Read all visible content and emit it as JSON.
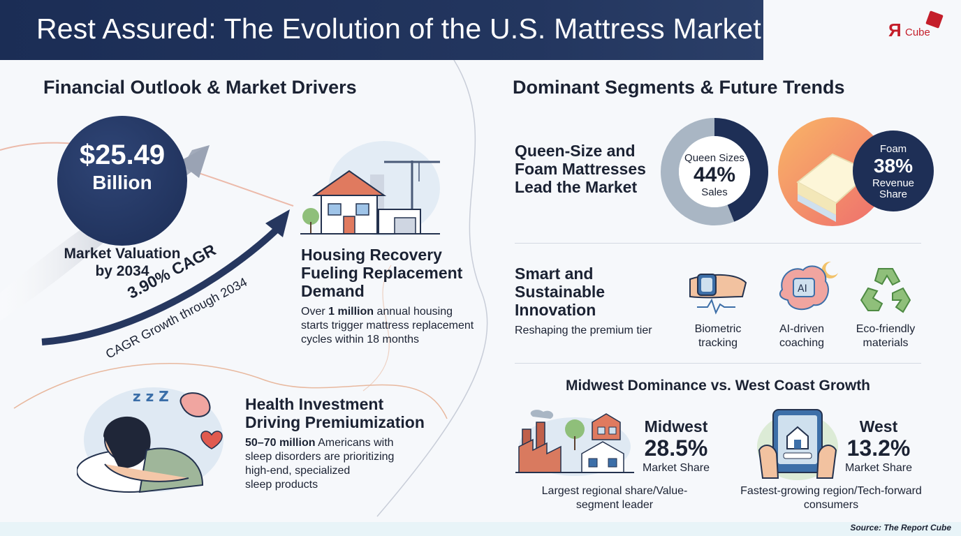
{
  "header": {
    "title": "Rest Assured: The Evolution of the U.S. Mattress Market",
    "logo_letter": "Я",
    "logo_text": "Cube",
    "logo_color": "#c41e2a"
  },
  "left": {
    "section_title": "Financial Outlook & Market Drivers",
    "valuation": {
      "value": "$25.49",
      "unit": "Billion",
      "caption_line1": "Market Valuation",
      "caption_line2": "by 2034"
    },
    "cagr": {
      "value": "3.90% CAGR",
      "caption": "CAGR Growth through 2034"
    },
    "housing": {
      "title_line1": "Housing Recovery",
      "title_line2": "Fueling Replacement",
      "title_line3": "Demand",
      "text_prefix": "Over ",
      "text_bold": "1 million",
      "text_rest1": " annual housing",
      "text_line2": "starts trigger mattress replacement",
      "text_line3": "cycles within 18 months",
      "icon": "house-with-crane-icon"
    },
    "health": {
      "title_line1": "Health Investment",
      "title_line2": "Driving Premiumization",
      "text_bold": "50–70 million",
      "text_rest1": " Americans with",
      "text_line2": "sleep disorders are prioritizing",
      "text_line3": "high-end, specialized",
      "text_line4": "sleep products",
      "icon": "sleeping-woman-icon"
    }
  },
  "right": {
    "section_title": "Dominant Segments & Future Trends",
    "segments": {
      "title_line1": "Queen-Size and",
      "title_line2": "Foam Mattresses",
      "title_line3": "Lead the Market",
      "queen": {
        "label_top": "Queen Sizes",
        "value": "44%",
        "label_bottom": "Sales",
        "fraction": 0.44
      },
      "foam": {
        "label_top": "Foam",
        "value": "38%",
        "label_line2": "Revenue",
        "label_line3": "Share",
        "fraction": 0.38
      }
    },
    "innovation": {
      "title_line1": "Smart and",
      "title_line2": "Sustainable",
      "title_line3": "Innovation",
      "subtitle": "Reshaping the premium tier",
      "items": [
        {
          "line1": "Biometric",
          "line2": "tracking",
          "icon": "smartwatch-icon"
        },
        {
          "line1": "AI-driven",
          "line2": "coaching",
          "icon": "ai-brain-icon"
        },
        {
          "line1": "Eco-friendly",
          "line2": "materials",
          "icon": "recycle-icon"
        }
      ]
    },
    "regions": {
      "title": "Midwest Dominance vs. West Coast Growth",
      "midwest": {
        "name": "Midwest",
        "value": "28.5%",
        "label": "Market Share",
        "caption_line1": "Largest regional share/Value-",
        "caption_line2": "segment leader",
        "icon": "factory-town-icon"
      },
      "west": {
        "name": "West",
        "value": "13.2%",
        "label": "Market Share",
        "caption_line1": "Fastest-growing region/Tech-forward",
        "caption_line2": "consumers",
        "icon": "smart-tablet-icon"
      }
    }
  },
  "footer": {
    "source": "Source: The Report Cube"
  }
}
